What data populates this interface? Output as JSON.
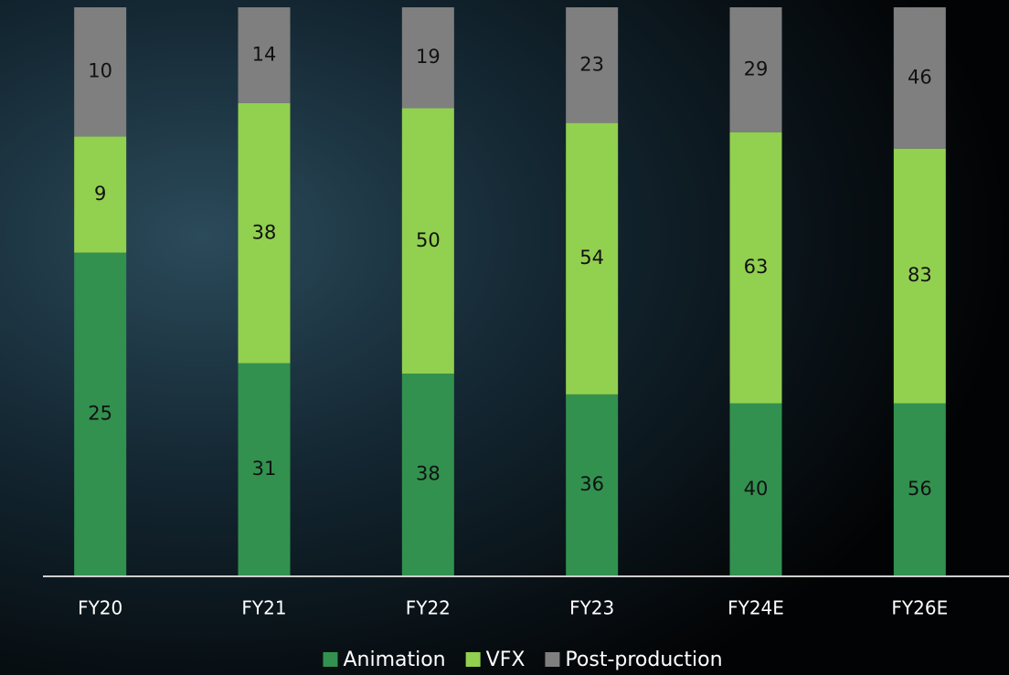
{
  "chart_data": {
    "type": "bar",
    "stacking": "percent",
    "categories": [
      "FY20",
      "FY21",
      "FY22",
      "FY23",
      "FY24E",
      "FY26E"
    ],
    "series": [
      {
        "name": "Animation",
        "color": "#32914f",
        "values": [
          25,
          31,
          38,
          36,
          40,
          56
        ]
      },
      {
        "name": "VFX",
        "color": "#92d050",
        "values": [
          9,
          38,
          50,
          54,
          63,
          83
        ]
      },
      {
        "name": "Post-production",
        "color": "#7f7f7f",
        "values": [
          10,
          14,
          19,
          23,
          29,
          46
        ]
      }
    ],
    "legend": "bottom"
  }
}
